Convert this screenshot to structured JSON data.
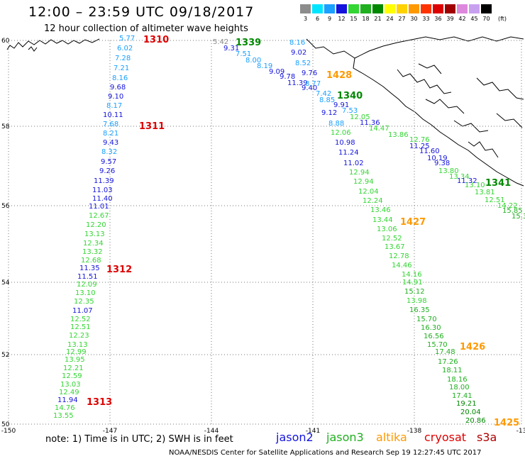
{
  "header": {
    "title": "12:00 – 23:59 UTC 09/18/2017",
    "subtitle": "12 hour collection of altimeter wave heights"
  },
  "color_scale": {
    "unit": "(ft)",
    "bins": [
      {
        "label": "3",
        "color": "#8c8c8c"
      },
      {
        "label": "6",
        "color": "#00e5ff"
      },
      {
        "label": "9",
        "color": "#1aa0ff"
      },
      {
        "label": "12",
        "color": "#1414dc"
      },
      {
        "label": "15",
        "color": "#33d633"
      },
      {
        "label": "18",
        "color": "#20b020"
      },
      {
        "label": "21",
        "color": "#008800"
      },
      {
        "label": "24",
        "color": "#ffff00"
      },
      {
        "label": "27",
        "color": "#ffd200"
      },
      {
        "label": "30",
        "color": "#ff9900"
      },
      {
        "label": "33",
        "color": "#ff3300"
      },
      {
        "label": "36",
        "color": "#dd0000"
      },
      {
        "label": "39",
        "color": "#a00000"
      },
      {
        "label": "42",
        "color": "#dd88dd"
      },
      {
        "label": "45",
        "color": "#c8a0f0"
      },
      {
        "label": "70",
        "color": "#000000"
      }
    ]
  },
  "map": {
    "lat_labels": [
      "60",
      "58",
      "56",
      "54",
      "52",
      "50"
    ],
    "lon_labels": [
      "-150",
      "-147",
      "-144",
      "-141",
      "-138",
      "-13"
    ]
  },
  "pass_labels": [
    {
      "text": "1310",
      "color": "#dd0000"
    },
    {
      "text": "1311",
      "color": "#dd0000"
    },
    {
      "text": "1312",
      "color": "#dd0000"
    },
    {
      "text": "1313",
      "color": "#dd0000"
    },
    {
      "text": "1339",
      "color": "#008800"
    },
    {
      "text": "1340",
      "color": "#008800"
    },
    {
      "text": "1341",
      "color": "#008800"
    },
    {
      "text": "1428",
      "color": "#ff9900"
    },
    {
      "text": "1427",
      "color": "#ff9900"
    },
    {
      "text": "1426",
      "color": "#ff9900"
    },
    {
      "text": "1425",
      "color": "#ff9900"
    }
  ],
  "values": [
    {
      "text": "5.77",
      "color": "#1aa0ff"
    },
    {
      "text": "6.02",
      "color": "#1aa0ff"
    },
    {
      "text": "7.28",
      "color": "#1aa0ff"
    },
    {
      "text": "7.21",
      "color": "#1aa0ff"
    },
    {
      "text": "8.16",
      "color": "#1aa0ff"
    },
    {
      "text": "9.68",
      "color": "#1414dc"
    },
    {
      "text": "9.10",
      "color": "#1414dc"
    },
    {
      "text": "8.17",
      "color": "#1aa0ff"
    },
    {
      "text": "10.11",
      "color": "#1414dc"
    },
    {
      "text": "7.68",
      "color": "#1aa0ff"
    },
    {
      "text": "8.21",
      "color": "#1aa0ff"
    },
    {
      "text": "9.43",
      "color": "#1414dc"
    },
    {
      "text": "8.32",
      "color": "#1aa0ff"
    },
    {
      "text": "9.57",
      "color": "#1414dc"
    },
    {
      "text": "9.26",
      "color": "#1414dc"
    },
    {
      "text": "11.39",
      "color": "#1414dc"
    },
    {
      "text": "11.03",
      "color": "#1414dc"
    },
    {
      "text": "11.40",
      "color": "#1414dc"
    },
    {
      "text": "11.01",
      "color": "#1414dc"
    },
    {
      "text": "12.67",
      "color": "#33d633"
    },
    {
      "text": "12.20",
      "color": "#33d633"
    },
    {
      "text": "13.13",
      "color": "#33d633"
    },
    {
      "text": "12.34",
      "color": "#33d633"
    },
    {
      "text": "13.32",
      "color": "#33d633"
    },
    {
      "text": "12.68",
      "color": "#33d633"
    },
    {
      "text": "11.35",
      "color": "#1414dc"
    },
    {
      "text": "11.51",
      "color": "#1414dc"
    },
    {
      "text": "12.09",
      "color": "#33d633"
    },
    {
      "text": "13.10",
      "color": "#33d633"
    },
    {
      "text": "12.35",
      "color": "#33d633"
    },
    {
      "text": "11.07",
      "color": "#1414dc"
    },
    {
      "text": "12.52",
      "color": "#33d633"
    },
    {
      "text": "12.51",
      "color": "#33d633"
    },
    {
      "text": "12.23",
      "color": "#33d633"
    },
    {
      "text": "13.13",
      "color": "#33d633"
    },
    {
      "text": "12.99",
      "color": "#33d633"
    },
    {
      "text": "13.95",
      "color": "#33d633"
    },
    {
      "text": "12.21",
      "color": "#33d633"
    },
    {
      "text": "12.59",
      "color": "#33d633"
    },
    {
      "text": "13.03",
      "color": "#33d633"
    },
    {
      "text": "12.49",
      "color": "#33d633"
    },
    {
      "text": "11.94",
      "color": "#1414dc"
    },
    {
      "text": "14.76",
      "color": "#33d633"
    },
    {
      "text": "13.55",
      "color": "#33d633"
    },
    {
      "text": "5.42",
      "color": "#8c8c8c"
    },
    {
      "text": "9.31",
      "color": "#1414dc"
    },
    {
      "text": "7.51",
      "color": "#1aa0ff"
    },
    {
      "text": "8.00",
      "color": "#1aa0ff"
    },
    {
      "text": "8.19",
      "color": "#1aa0ff"
    },
    {
      "text": "9.09",
      "color": "#1414dc"
    },
    {
      "text": "9.78",
      "color": "#1414dc"
    },
    {
      "text": "11.39",
      "color": "#1414dc"
    },
    {
      "text": "9.40",
      "color": "#1414dc"
    },
    {
      "text": "7.42",
      "color": "#1aa0ff"
    },
    {
      "text": "8.85",
      "color": "#1aa0ff"
    },
    {
      "text": "9.91",
      "color": "#1414dc"
    },
    {
      "text": "7.53",
      "color": "#1aa0ff"
    },
    {
      "text": "12.05",
      "color": "#33d633"
    },
    {
      "text": "14.47",
      "color": "#33d633"
    },
    {
      "text": "13.86",
      "color": "#33d633"
    },
    {
      "text": "12.76",
      "color": "#33d633"
    },
    {
      "text": "13.80",
      "color": "#33d633"
    },
    {
      "text": "13.34",
      "color": "#33d633"
    },
    {
      "text": "13.10",
      "color": "#33d633"
    },
    {
      "text": "13.81",
      "color": "#33d633"
    },
    {
      "text": "12.51",
      "color": "#33d633"
    },
    {
      "text": "14.22",
      "color": "#33d633"
    },
    {
      "text": "15.85",
      "color": "#20b020"
    },
    {
      "text": "15.3",
      "color": "#20b020"
    },
    {
      "text": "8.16",
      "color": "#1aa0ff"
    },
    {
      "text": "9.02",
      "color": "#1414dc"
    },
    {
      "text": "8.52",
      "color": "#1aa0ff"
    },
    {
      "text": "9.76",
      "color": "#1414dc"
    },
    {
      "text": "8.77",
      "color": "#1aa0ff"
    },
    {
      "text": "9.12",
      "color": "#1414dc"
    },
    {
      "text": "8.88",
      "color": "#1aa0ff"
    },
    {
      "text": "11.36",
      "color": "#1414dc"
    },
    {
      "text": "11.25",
      "color": "#1414dc"
    },
    {
      "text": "11.60",
      "color": "#1414dc"
    },
    {
      "text": "10.19",
      "color": "#1414dc"
    },
    {
      "text": "9.38",
      "color": "#1414dc"
    },
    {
      "text": "11.32",
      "color": "#1414dc"
    },
    {
      "text": "12.06",
      "color": "#33d633"
    },
    {
      "text": "10.98",
      "color": "#1414dc"
    },
    {
      "text": "11.24",
      "color": "#1414dc"
    },
    {
      "text": "11.02",
      "color": "#1414dc"
    },
    {
      "text": "12.94",
      "color": "#33d633"
    },
    {
      "text": "12.94",
      "color": "#33d633"
    },
    {
      "text": "12.04",
      "color": "#33d633"
    },
    {
      "text": "12.24",
      "color": "#33d633"
    },
    {
      "text": "13.46",
      "color": "#33d633"
    },
    {
      "text": "13.44",
      "color": "#33d633"
    },
    {
      "text": "13.06",
      "color": "#33d633"
    },
    {
      "text": "12.52",
      "color": "#33d633"
    },
    {
      "text": "13.67",
      "color": "#33d633"
    },
    {
      "text": "12.78",
      "color": "#33d633"
    },
    {
      "text": "14.46",
      "color": "#33d633"
    },
    {
      "text": "14.16",
      "color": "#33d633"
    },
    {
      "text": "14.91",
      "color": "#33d633"
    },
    {
      "text": "15.12",
      "color": "#20b020"
    },
    {
      "text": "13.98",
      "color": "#33d633"
    },
    {
      "text": "16.35",
      "color": "#20b020"
    },
    {
      "text": "15.70",
      "color": "#20b020"
    },
    {
      "text": "16.30",
      "color": "#20b020"
    },
    {
      "text": "16.56",
      "color": "#20b020"
    },
    {
      "text": "15.70",
      "color": "#20b020"
    },
    {
      "text": "17.48",
      "color": "#20b020"
    },
    {
      "text": "17.26",
      "color": "#20b020"
    },
    {
      "text": "18.11",
      "color": "#20b020"
    },
    {
      "text": "18.16",
      "color": "#20b020"
    },
    {
      "text": "18.00",
      "color": "#20b020"
    },
    {
      "text": "17.41",
      "color": "#20b020"
    },
    {
      "text": "19.21",
      "color": "#008800"
    },
    {
      "text": "20.04",
      "color": "#008800"
    },
    {
      "text": "20.86",
      "color": "#008800"
    }
  ],
  "note": "note:  1) Time is in UTC;  2) SWH is in feet",
  "legend": [
    {
      "text": "jason2",
      "color": "#1414dc"
    },
    {
      "text": "jason3",
      "color": "#20b020"
    },
    {
      "text": "altika",
      "color": "#ff9900"
    },
    {
      "text": "cryosat",
      "color": "#dd0000"
    },
    {
      "text": "s3a",
      "color": "#b00000"
    }
  ],
  "footer": "NOAA/NESDIS Center for Satellite Applications and Research    Sep 19 12:27:45 UTC 2017"
}
